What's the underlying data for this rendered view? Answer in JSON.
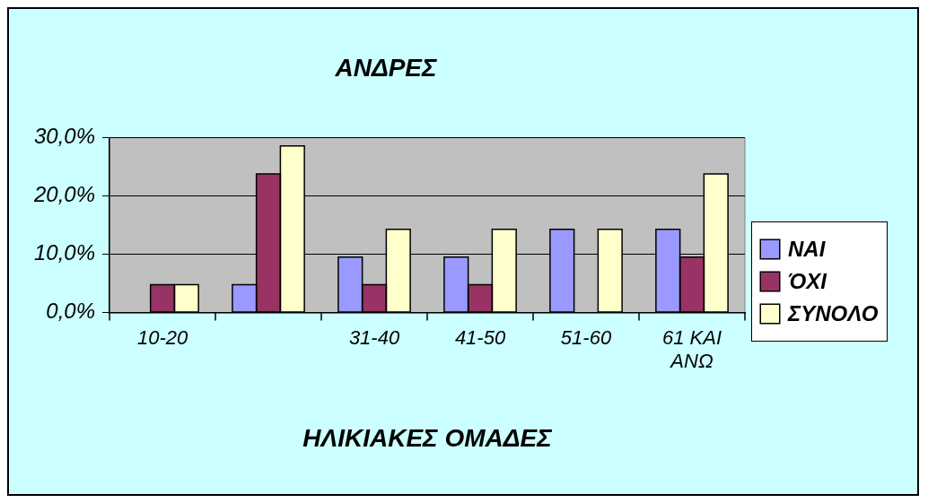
{
  "chart_data": {
    "type": "bar",
    "title": "ΑΝΔΡΕΣ",
    "xlabel": "ΗΛΙΚΙΑΚΕΣ ΟΜΑΔΕΣ",
    "categories": [
      "10-20",
      null,
      "31-40",
      "41-50",
      "51-60",
      "61 ΚΑΙ ΑΝΩ"
    ],
    "series": [
      {
        "name": "ΝΑΙ",
        "color": "#9999ff",
        "values": [
          0,
          4.8,
          9.5,
          9.5,
          14.3,
          14.3
        ]
      },
      {
        "name": "ΌΧΙ",
        "color": "#993366",
        "values": [
          4.8,
          23.8,
          4.8,
          4.8,
          0,
          9.5
        ]
      },
      {
        "name": "ΣΥΝΟΛΟ",
        "color": "#ffffcc",
        "values": [
          4.8,
          28.6,
          14.3,
          14.3,
          14.3,
          23.8
        ]
      }
    ],
    "ylim": [
      0,
      30
    ],
    "yticks": [
      {
        "value": 0,
        "label": "0,0%"
      },
      {
        "value": 10,
        "label": "10,0%"
      },
      {
        "value": 20,
        "label": "20,0%"
      },
      {
        "value": 30,
        "label": "30,0%"
      }
    ],
    "grid": "y",
    "legend": "right"
  }
}
